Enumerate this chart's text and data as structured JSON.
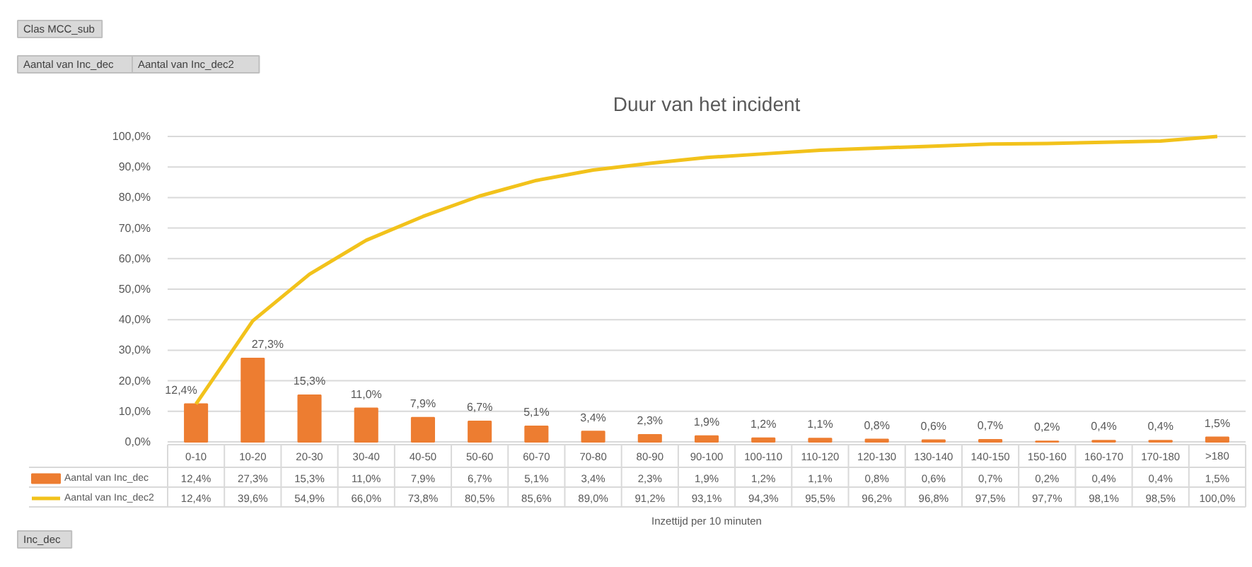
{
  "chart_data": {
    "type": "bar",
    "title": "Duur van het incident",
    "xlabel": "Inzettijd per 10 minuten",
    "categories": [
      "0-10",
      "10-20",
      "20-30",
      "30-40",
      "40-50",
      "50-60",
      "60-70",
      "70-80",
      "80-90",
      "90-100",
      "100-110",
      "110-120",
      "120-130",
      "130-140",
      "140-150",
      "150-160",
      "160-170",
      "170-180",
      ">180"
    ],
    "series": [
      {
        "name": "Aantal van Inc_dec",
        "color": "#ed7d31",
        "values": [
          12.4,
          27.3,
          15.3,
          11.0,
          7.9,
          6.7,
          5.1,
          3.4,
          2.3,
          1.9,
          1.2,
          1.1,
          0.8,
          0.6,
          0.7,
          0.2,
          0.4,
          0.4,
          1.5
        ],
        "value_labels": [
          "12,4%",
          "27,3%",
          "15,3%",
          "11,0%",
          "7,9%",
          "6,7%",
          "5,1%",
          "3,4%",
          "2,3%",
          "1,9%",
          "1,2%",
          "1,1%",
          "0,8%",
          "0,6%",
          "0,7%",
          "0,2%",
          "0,4%",
          "0,4%",
          "1,5%"
        ]
      },
      {
        "name": "Aantal van Inc_dec2",
        "type": "line",
        "color": "#f2c21b",
        "values": [
          12.4,
          39.6,
          54.9,
          66.0,
          73.8,
          80.5,
          85.6,
          89.0,
          91.2,
          93.1,
          94.3,
          95.5,
          96.2,
          96.8,
          97.5,
          97.7,
          98.1,
          98.5,
          100.0
        ],
        "value_labels": [
          "12,4%",
          "39,6%",
          "54,9%",
          "66,0%",
          "73,8%",
          "80,5%",
          "85,6%",
          "89,0%",
          "91,2%",
          "93,1%",
          "94,3%",
          "95,5%",
          "96,2%",
          "96,8%",
          "97,5%",
          "97,7%",
          "98,1%",
          "98,5%",
          "100,0%"
        ]
      }
    ],
    "ylim": [
      0,
      100
    ],
    "yticks": [
      {
        "value": 0,
        "label": "0,0%"
      },
      {
        "value": 10,
        "label": "10,0%"
      },
      {
        "value": 20,
        "label": "20,0%"
      },
      {
        "value": 30,
        "label": "30,0%"
      },
      {
        "value": 40,
        "label": "40,0%"
      },
      {
        "value": 50,
        "label": "50,0%"
      },
      {
        "value": 60,
        "label": "60,0%"
      },
      {
        "value": 70,
        "label": "70,0%"
      },
      {
        "value": 80,
        "label": "80,0%"
      },
      {
        "value": 90,
        "label": "90,0%"
      },
      {
        "value": 100,
        "label": "100,0%"
      }
    ],
    "grid": "y",
    "legend": "bottom",
    "annotations": [
      "Clas MCC_sub",
      "Aantal van Inc_dec",
      "Aantal van Inc_dec2",
      "Inc_dec"
    ]
  }
}
